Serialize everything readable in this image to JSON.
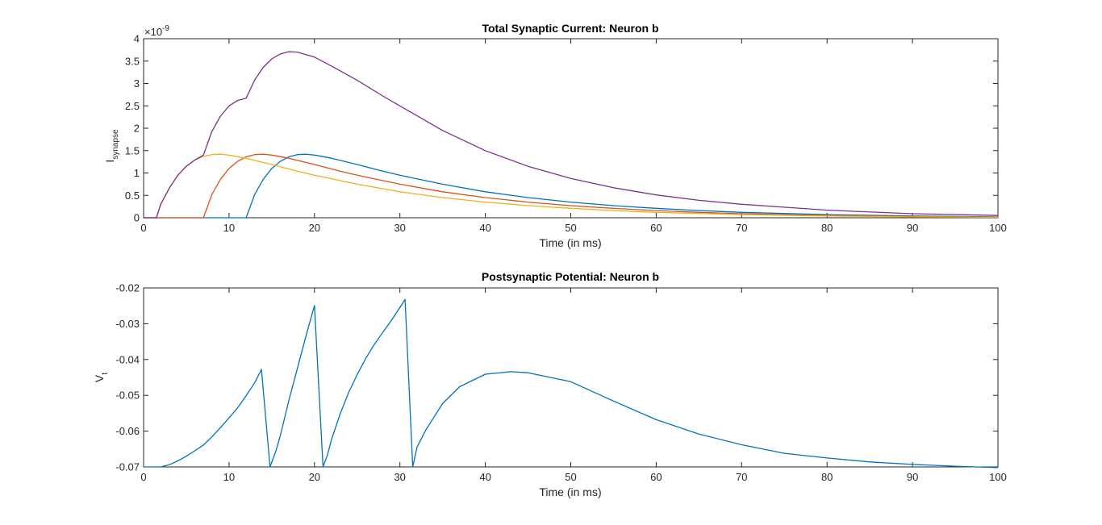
{
  "chart_data": [
    {
      "type": "line",
      "title": "Total Synaptic Current: Neuron b",
      "xlabel": "Time (in ms)",
      "ylabel": "I",
      "ylabel_subscript": "synapse",
      "y_exponent_label": "×10",
      "y_exponent_power": "-9",
      "xlim": [
        0,
        100
      ],
      "ylim": [
        0,
        4
      ],
      "xticks": [
        "0",
        "10",
        "20",
        "30",
        "40",
        "50",
        "60",
        "70",
        "80",
        "90",
        "100"
      ],
      "yticks": [
        "0",
        "0.5",
        "1",
        "1.5",
        "2",
        "2.5",
        "3",
        "3.5",
        "4"
      ],
      "series": [
        {
          "color": "#0072BD",
          "x": [
            0,
            10,
            12,
            13,
            14,
            15,
            16,
            17,
            18,
            19,
            20,
            22,
            25,
            28,
            30,
            35,
            40,
            45,
            50,
            55,
            60,
            65,
            70,
            80,
            90,
            100
          ],
          "y": [
            0,
            0,
            0,
            0.52,
            0.86,
            1.1,
            1.26,
            1.36,
            1.41,
            1.42,
            1.4,
            1.33,
            1.19,
            1.04,
            0.95,
            0.75,
            0.58,
            0.45,
            0.35,
            0.27,
            0.21,
            0.16,
            0.12,
            0.07,
            0.04,
            0.02
          ]
        },
        {
          "color": "#D95319",
          "x": [
            0,
            5,
            7,
            8,
            9,
            10,
            11,
            12,
            13,
            14,
            15,
            17,
            20,
            23,
            25,
            30,
            35,
            40,
            45,
            50,
            55,
            60,
            65,
            70,
            80,
            90,
            100
          ],
          "y": [
            0,
            0,
            0,
            0.52,
            0.86,
            1.1,
            1.26,
            1.36,
            1.41,
            1.42,
            1.4,
            1.33,
            1.19,
            1.04,
            0.95,
            0.75,
            0.58,
            0.45,
            0.35,
            0.27,
            0.21,
            0.16,
            0.12,
            0.09,
            0.05,
            0.03,
            0.01
          ]
        },
        {
          "color": "#EDB120",
          "x": [
            0,
            1.5,
            2,
            3,
            4,
            5,
            6,
            7,
            8,
            9,
            10,
            12,
            15,
            18,
            20,
            25,
            30,
            35,
            40,
            45,
            50,
            55,
            60,
            70,
            80,
            90,
            100
          ],
          "y": [
            0,
            0,
            0.3,
            0.66,
            0.95,
            1.15,
            1.29,
            1.37,
            1.41,
            1.42,
            1.4,
            1.33,
            1.19,
            1.04,
            0.95,
            0.75,
            0.58,
            0.45,
            0.35,
            0.27,
            0.21,
            0.16,
            0.12,
            0.07,
            0.04,
            0.02,
            0.01
          ]
        },
        {
          "color": "#7E2F8E",
          "x": [
            0,
            1.5,
            2,
            3,
            4,
            5,
            6,
            7,
            8,
            9,
            10,
            11,
            12,
            13,
            14,
            15,
            16,
            17,
            18,
            20,
            22,
            25,
            28,
            30,
            35,
            40,
            45,
            50,
            55,
            60,
            65,
            70,
            80,
            90,
            100
          ],
          "y": [
            0,
            0,
            0.3,
            0.66,
            0.95,
            1.15,
            1.29,
            1.4,
            1.93,
            2.27,
            2.5,
            2.62,
            2.67,
            3.08,
            3.36,
            3.55,
            3.66,
            3.71,
            3.7,
            3.59,
            3.39,
            3.07,
            2.72,
            2.5,
            1.95,
            1.5,
            1.15,
            0.88,
            0.67,
            0.51,
            0.39,
            0.3,
            0.17,
            0.09,
            0.05
          ]
        }
      ]
    },
    {
      "type": "line",
      "title": "Postsynaptic Potential: Neuron b",
      "xlabel": "Time (in ms)",
      "ylabel": "V",
      "ylabel_subscript": "t",
      "xlim": [
        0,
        100
      ],
      "ylim": [
        -0.07,
        -0.02
      ],
      "xticks": [
        "0",
        "10",
        "20",
        "30",
        "40",
        "50",
        "60",
        "70",
        "80",
        "90",
        "100"
      ],
      "yticks": [
        "-0.07",
        "-0.06",
        "-0.05",
        "-0.04",
        "-0.03",
        "-0.02"
      ],
      "series": [
        {
          "color": "#0072BD",
          "x": [
            0,
            1,
            2,
            3,
            4,
            5,
            6,
            7,
            8,
            9,
            10,
            11,
            12,
            13,
            13.8,
            13.8,
            14.8,
            15.5,
            16,
            17,
            18,
            19,
            20,
            20,
            21,
            21.5,
            22,
            23,
            24,
            25,
            26,
            27,
            28,
            29,
            30,
            30.6,
            30.6,
            31.5,
            32,
            33,
            35,
            37,
            40,
            43,
            45,
            50,
            55,
            60,
            65,
            70,
            75,
            80,
            85,
            90,
            95,
            100
          ],
          "y": [
            -0.07,
            -0.07,
            -0.07,
            -0.0694,
            -0.0683,
            -0.067,
            -0.0655,
            -0.0639,
            -0.0616,
            -0.059,
            -0.0563,
            -0.0535,
            -0.0501,
            -0.0465,
            -0.0428,
            -0.0428,
            -0.07,
            -0.0655,
            -0.0613,
            -0.0515,
            -0.0425,
            -0.0335,
            -0.0249,
            -0.0249,
            -0.07,
            -0.0668,
            -0.0623,
            -0.0552,
            -0.0492,
            -0.0442,
            -0.0397,
            -0.0358,
            -0.0324,
            -0.0291,
            -0.0255,
            -0.0232,
            -0.0232,
            -0.07,
            -0.0645,
            -0.0598,
            -0.0523,
            -0.0476,
            -0.0441,
            -0.0434,
            -0.0437,
            -0.0462,
            -0.0516,
            -0.0568,
            -0.0608,
            -0.0638,
            -0.0662,
            -0.0675,
            -0.0686,
            -0.0693,
            -0.0698,
            -0.0702
          ]
        }
      ]
    }
  ]
}
